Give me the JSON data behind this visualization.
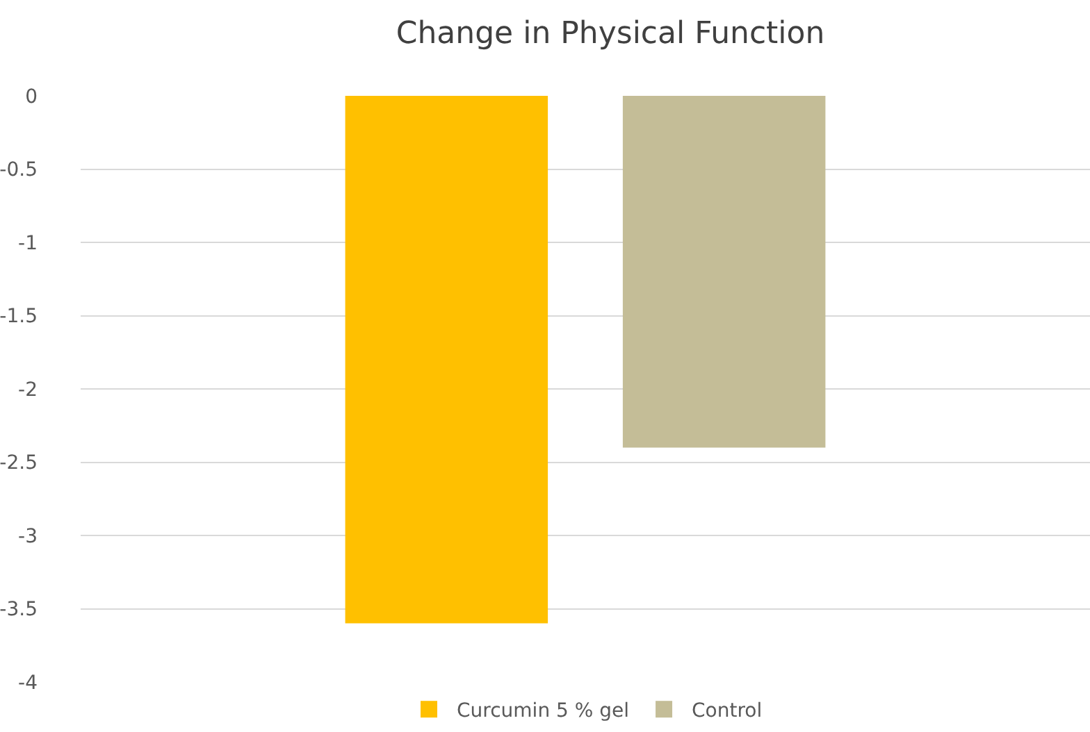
{
  "chart_data": {
    "type": "bar",
    "title": "Change in Physical Function",
    "categories": [
      null
    ],
    "series": [
      {
        "name": "Curcumin 5 % gel",
        "color": "#ffc000",
        "values": [
          -3.6
        ]
      },
      {
        "name": "Control",
        "color": "#c4bd97",
        "values": [
          -2.4
        ]
      }
    ],
    "ylim": [
      -4,
      0
    ],
    "yticks": [
      0,
      -0.5,
      -1,
      -1.5,
      -2,
      -2.5,
      -3,
      -3.5,
      -4
    ],
    "grid": "y",
    "legend": "bottom"
  }
}
